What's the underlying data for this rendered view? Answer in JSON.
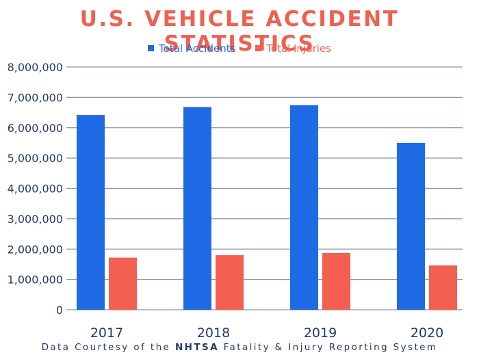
{
  "colors": {
    "title": "#f0604f",
    "accidents": "#1f6be6",
    "injuries": "#f45f52",
    "text": "#243a66",
    "grid": "#8a94a6"
  },
  "footer": {
    "prefix": "Data Courtesy of the ",
    "bold": "NHTSA",
    "suffix": " Fatality & Injury Reporting System"
  },
  "chart_data": {
    "type": "bar",
    "title": "U.S. VEHICLE ACCIDENT STATISTICS",
    "categories": [
      "2017",
      "2018",
      "2019",
      "2020"
    ],
    "series": [
      {
        "name": "Total Accidents",
        "values": [
          6420000,
          6680000,
          6740000,
          5500000
        ]
      },
      {
        "name": "Total Injuries",
        "values": [
          1720000,
          1800000,
          1870000,
          1460000
        ]
      }
    ],
    "xlabel": "",
    "ylabel": "",
    "ylim": [
      0,
      8000000
    ],
    "yticks": [
      0,
      1000000,
      2000000,
      3000000,
      4000000,
      5000000,
      6000000,
      7000000,
      8000000
    ],
    "ytick_labels": [
      "0",
      "1,000,000",
      "2,000,000",
      "3,000,000",
      "4,000,000",
      "5,000,000",
      "6,000,000",
      "7,000,000",
      "8,000,000"
    ],
    "grid": true,
    "legend_position": "top-center"
  }
}
